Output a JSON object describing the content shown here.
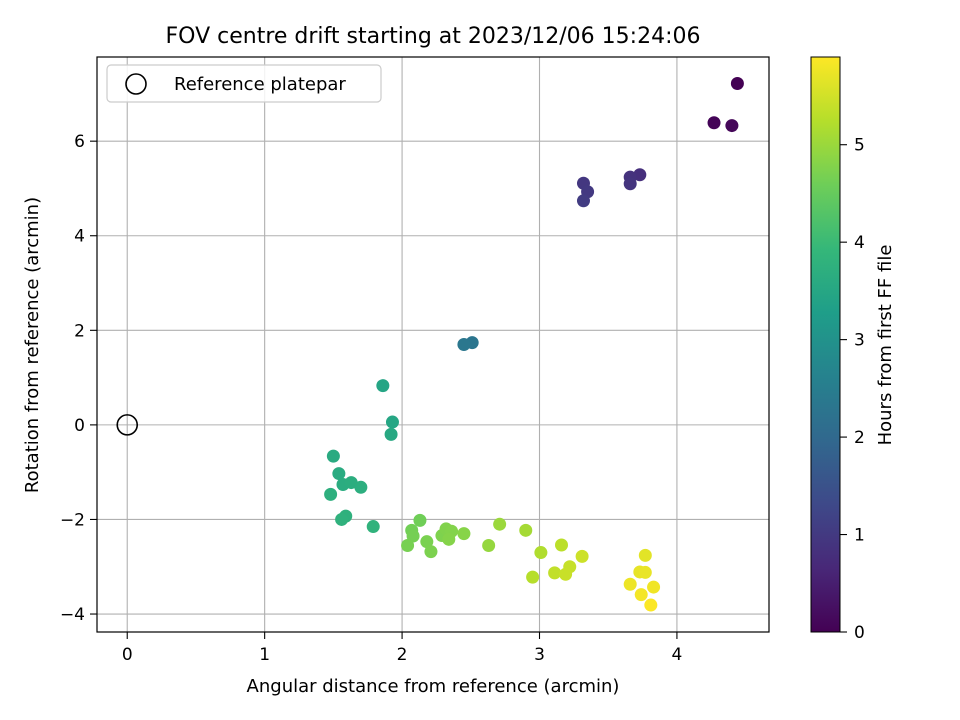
{
  "chart_data": {
    "type": "scatter",
    "title": "FOV centre drift starting at 2023/12/06 15:24:06",
    "xlabel": "Angular distance from reference (arcmin)",
    "ylabel": "Rotation from reference (arcmin)",
    "xlim": [
      -0.22,
      4.67
    ],
    "ylim": [
      -4.38,
      7.78
    ],
    "xticks": [
      0,
      1,
      2,
      3,
      4
    ],
    "yticks": [
      -4,
      -2,
      0,
      2,
      4,
      6
    ],
    "grid": true,
    "legend": {
      "position": "top-left",
      "entries": [
        "Reference platepar"
      ]
    },
    "reference_point": {
      "x": 0,
      "y": 0,
      "label": "Reference platepar"
    },
    "colorbar": {
      "label": "Hours from first FF file",
      "range": [
        0,
        5.9
      ],
      "ticks": [
        0,
        1,
        2,
        3,
        4,
        5
      ],
      "colormap": "viridis"
    },
    "series": [
      {
        "points": [
          {
            "x": 4.44,
            "y": 7.22,
            "c": 0.0
          },
          {
            "x": 4.27,
            "y": 6.39,
            "c": 0.05
          },
          {
            "x": 4.4,
            "y": 6.33,
            "c": 0.1
          },
          {
            "x": 3.73,
            "y": 5.29,
            "c": 0.8
          },
          {
            "x": 3.66,
            "y": 5.24,
            "c": 0.85
          },
          {
            "x": 3.66,
            "y": 5.1,
            "c": 0.9
          },
          {
            "x": 3.32,
            "y": 5.11,
            "c": 0.95
          },
          {
            "x": 3.35,
            "y": 4.93,
            "c": 1.0
          },
          {
            "x": 3.32,
            "y": 4.74,
            "c": 1.05
          },
          {
            "x": 2.51,
            "y": 1.74,
            "c": 2.3
          },
          {
            "x": 2.45,
            "y": 1.7,
            "c": 2.35
          },
          {
            "x": 1.86,
            "y": 0.83,
            "c": 3.45
          },
          {
            "x": 1.93,
            "y": 0.06,
            "c": 3.5
          },
          {
            "x": 1.92,
            "y": -0.2,
            "c": 3.55
          },
          {
            "x": 1.5,
            "y": -0.66,
            "c": 3.6
          },
          {
            "x": 1.54,
            "y": -1.03,
            "c": 3.62
          },
          {
            "x": 1.57,
            "y": -1.26,
            "c": 3.65
          },
          {
            "x": 1.63,
            "y": -1.22,
            "c": 3.68
          },
          {
            "x": 1.7,
            "y": -1.32,
            "c": 3.7
          },
          {
            "x": 1.48,
            "y": -1.47,
            "c": 3.72
          },
          {
            "x": 1.59,
            "y": -1.93,
            "c": 3.75
          },
          {
            "x": 1.56,
            "y": -2.0,
            "c": 3.78
          },
          {
            "x": 1.79,
            "y": -2.15,
            "c": 3.8
          },
          {
            "x": 2.13,
            "y": -2.02,
            "c": 4.6
          },
          {
            "x": 2.07,
            "y": -2.23,
            "c": 4.62
          },
          {
            "x": 2.08,
            "y": -2.35,
            "c": 4.65
          },
          {
            "x": 2.04,
            "y": -2.55,
            "c": 4.67
          },
          {
            "x": 2.18,
            "y": -2.47,
            "c": 4.7
          },
          {
            "x": 2.21,
            "y": -2.68,
            "c": 4.72
          },
          {
            "x": 2.29,
            "y": -2.34,
            "c": 4.74
          },
          {
            "x": 2.32,
            "y": -2.2,
            "c": 4.76
          },
          {
            "x": 2.36,
            "y": -2.25,
            "c": 4.78
          },
          {
            "x": 2.34,
            "y": -2.42,
            "c": 4.8
          },
          {
            "x": 2.45,
            "y": -2.3,
            "c": 4.82
          },
          {
            "x": 2.63,
            "y": -2.55,
            "c": 4.95
          },
          {
            "x": 2.71,
            "y": -2.1,
            "c": 5.0
          },
          {
            "x": 2.9,
            "y": -2.23,
            "c": 5.1
          },
          {
            "x": 3.01,
            "y": -2.7,
            "c": 5.2
          },
          {
            "x": 2.95,
            "y": -3.22,
            "c": 5.25
          },
          {
            "x": 3.16,
            "y": -2.54,
            "c": 5.3
          },
          {
            "x": 3.11,
            "y": -3.13,
            "c": 5.35
          },
          {
            "x": 3.22,
            "y": -3.0,
            "c": 5.4
          },
          {
            "x": 3.19,
            "y": -3.16,
            "c": 5.42
          },
          {
            "x": 3.31,
            "y": -2.78,
            "c": 5.45
          },
          {
            "x": 3.77,
            "y": -2.76,
            "c": 5.65
          },
          {
            "x": 3.73,
            "y": -3.11,
            "c": 5.7
          },
          {
            "x": 3.77,
            "y": -3.12,
            "c": 5.72
          },
          {
            "x": 3.66,
            "y": -3.37,
            "c": 5.75
          },
          {
            "x": 3.83,
            "y": -3.43,
            "c": 5.78
          },
          {
            "x": 3.74,
            "y": -3.59,
            "c": 5.82
          },
          {
            "x": 3.81,
            "y": -3.81,
            "c": 5.88
          }
        ]
      }
    ]
  }
}
